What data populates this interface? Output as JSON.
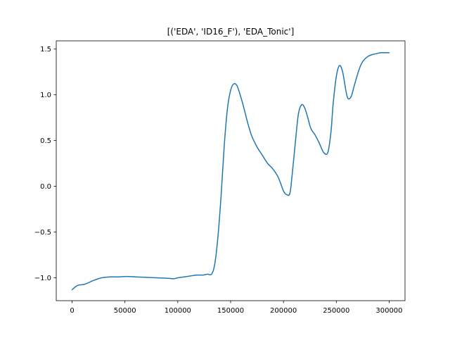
{
  "chart_data": {
    "type": "line",
    "title": "[('EDA', 'ID16_F'), 'EDA_Tonic']",
    "xlabel": "",
    "ylabel": "",
    "xlim": [
      -15000,
      315000
    ],
    "ylim": [
      -1.25,
      1.59
    ],
    "grid": false,
    "legend": "none",
    "color": "#1f77b4",
    "x_ticks": [
      0,
      50000,
      100000,
      150000,
      200000,
      250000,
      300000
    ],
    "x_tick_labels": [
      "0",
      "50000",
      "100000",
      "150000",
      "200000",
      "250000",
      "300000"
    ],
    "y_ticks": [
      -1.0,
      -0.5,
      0.0,
      0.5,
      1.0,
      1.5
    ],
    "y_tick_labels": [
      "−1.0",
      "−0.5",
      "0.0",
      "0.5",
      "1.0",
      "1.5"
    ],
    "series": [
      {
        "x": [
          0,
          3000,
          6000,
          12000,
          20000,
          28000,
          36000,
          44000,
          52000,
          60000,
          70000,
          80000,
          90000,
          96000,
          100000,
          106000,
          112000,
          118000,
          124000,
          128000,
          132000,
          135000,
          138000,
          141000,
          144000,
          147000,
          150000,
          153000,
          156000,
          159000,
          162000,
          166000,
          170000,
          175000,
          180000,
          185000,
          190000,
          195000,
          200000,
          203000,
          206000,
          208000,
          211000,
          214000,
          217000,
          220000,
          223000,
          226000,
          230000,
          234000,
          238000,
          242000,
          245000,
          247000,
          250000,
          253000,
          256000,
          259000,
          261000,
          264000,
          267000,
          270000,
          273000,
          276000,
          280000,
          284000,
          288000,
          292000,
          296000,
          300000
        ],
        "y": [
          -1.13,
          -1.1,
          -1.08,
          -1.07,
          -1.03,
          -1.0,
          -0.99,
          -0.99,
          -0.985,
          -0.99,
          -0.995,
          -1.0,
          -1.005,
          -1.01,
          -1.0,
          -0.99,
          -0.98,
          -0.97,
          -0.97,
          -0.96,
          -0.96,
          -0.85,
          -0.55,
          -0.1,
          0.45,
          0.85,
          1.05,
          1.12,
          1.1,
          1.0,
          0.88,
          0.7,
          0.55,
          0.43,
          0.34,
          0.25,
          0.19,
          0.1,
          -0.05,
          -0.09,
          -0.08,
          0.1,
          0.45,
          0.78,
          0.89,
          0.86,
          0.75,
          0.63,
          0.56,
          0.47,
          0.37,
          0.37,
          0.6,
          0.9,
          1.2,
          1.32,
          1.25,
          1.05,
          0.96,
          0.98,
          1.1,
          1.22,
          1.32,
          1.38,
          1.42,
          1.44,
          1.45,
          1.46,
          1.46,
          1.46
        ]
      }
    ]
  }
}
